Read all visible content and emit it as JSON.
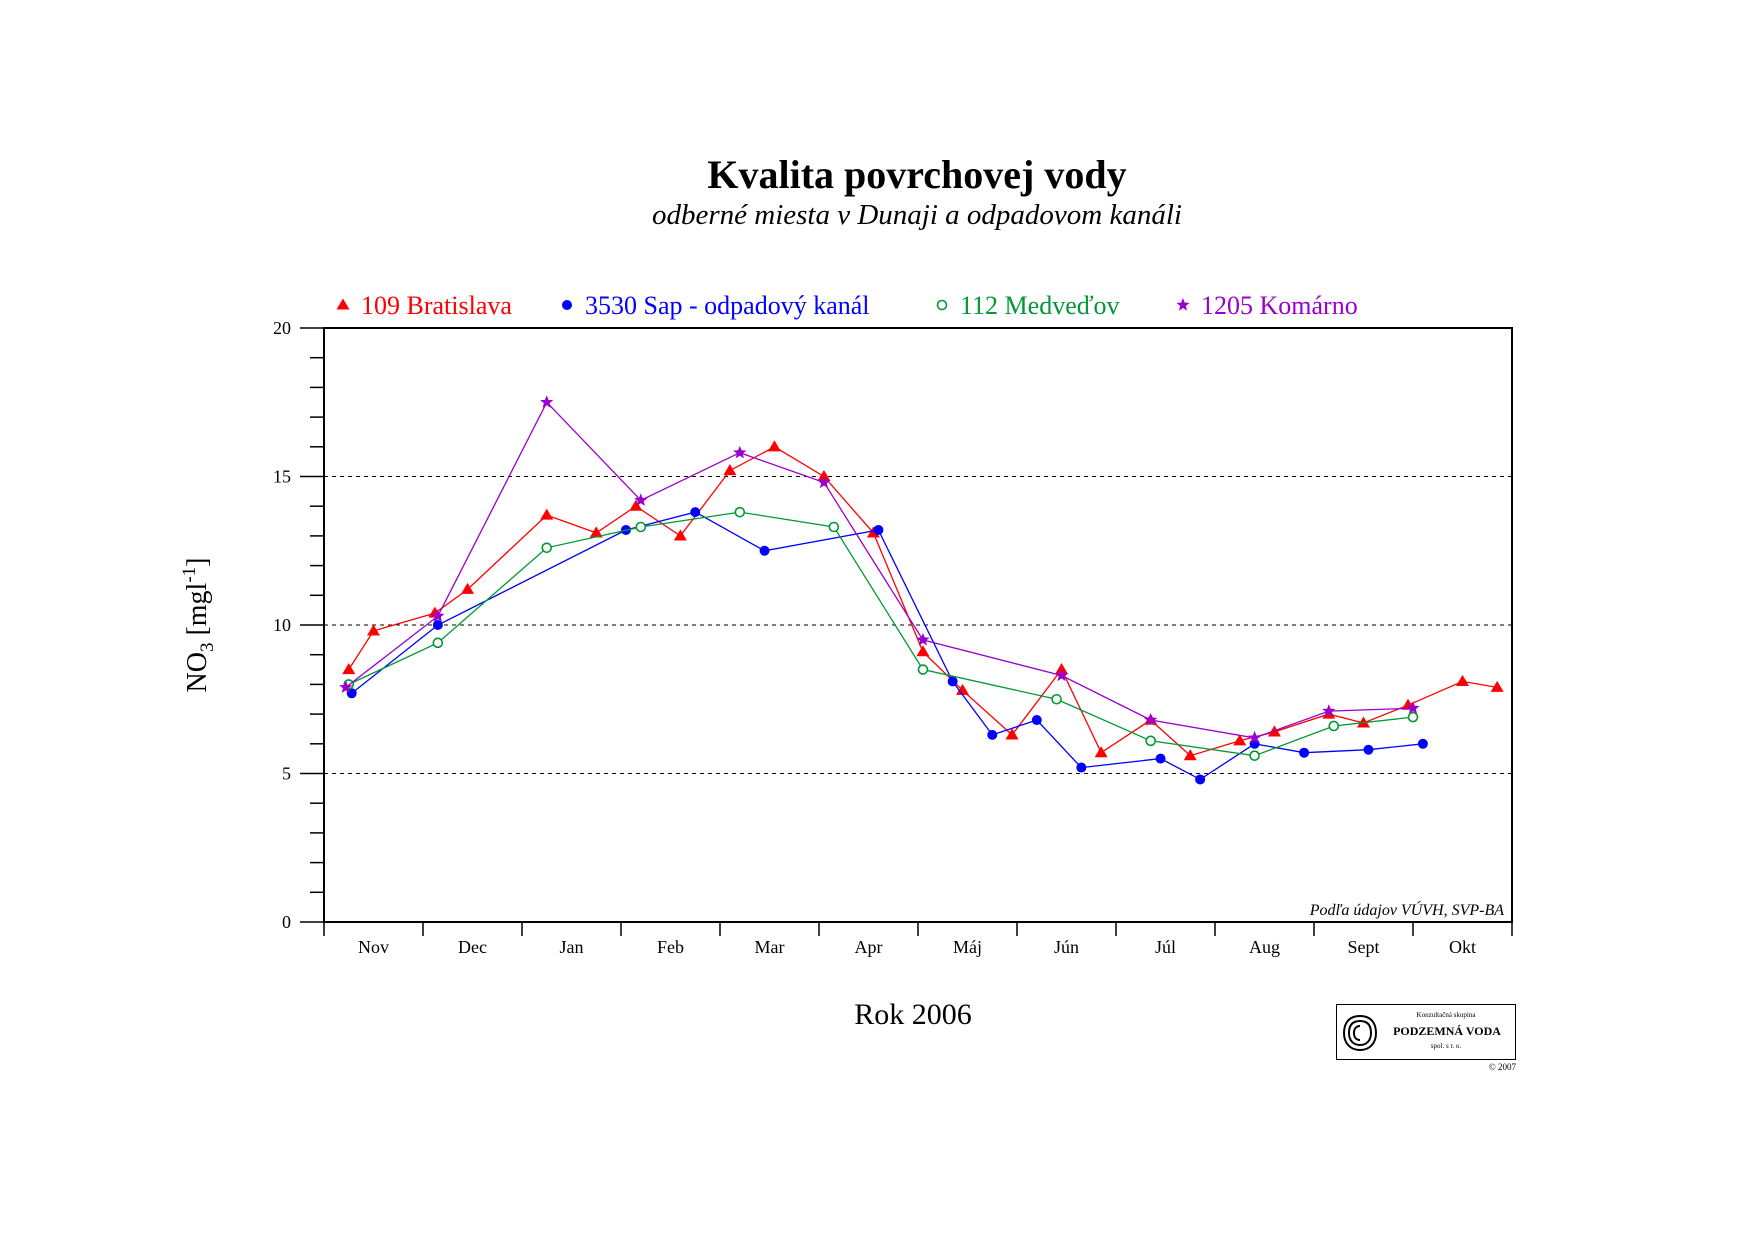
{
  "chart_data": {
    "type": "line",
    "title": "Kvalita povrchovej vody",
    "subtitle": "odberné miesta v Dunaji a odpadovom kanáli",
    "xlabel": "Rok 2006",
    "ylabel_main": "NO",
    "ylabel_sub": "3",
    "ylabel_unit_open": " [mgl",
    "ylabel_unit_sup": "-1",
    "ylabel_unit_close": "]",
    "months": [
      "Nov",
      "Dec",
      "Jan",
      "Feb",
      "Mar",
      "Apr",
      "Máj",
      "Jún",
      "Júl",
      "Aug",
      "Sept",
      "Okt"
    ],
    "ylim": [
      0,
      20
    ],
    "yticks": [
      0,
      5,
      10,
      15,
      20
    ],
    "gridlines": [
      5,
      10,
      15
    ],
    "legend_position": "top",
    "note": "Podľa údajov VÚVH, SVP-BA",
    "series": [
      {
        "name": "109 Bratislava",
        "color": "#ff0000",
        "marker": "triangle",
        "points": [
          [
            0.25,
            8.5
          ],
          [
            0.5,
            9.8
          ],
          [
            1.12,
            10.4
          ],
          [
            1.45,
            11.2
          ],
          [
            2.25,
            13.7
          ],
          [
            2.75,
            13.1
          ],
          [
            3.15,
            14.0
          ],
          [
            3.6,
            13.0
          ],
          [
            4.1,
            15.2
          ],
          [
            4.55,
            16.0
          ],
          [
            5.05,
            15.0
          ],
          [
            5.55,
            13.1
          ],
          [
            6.05,
            9.1
          ],
          [
            6.45,
            7.8
          ],
          [
            6.95,
            6.3
          ],
          [
            7.45,
            8.5
          ],
          [
            7.85,
            5.7
          ],
          [
            8.35,
            6.8
          ],
          [
            8.75,
            5.6
          ],
          [
            9.25,
            6.1
          ],
          [
            9.6,
            6.4
          ],
          [
            10.15,
            7.0
          ],
          [
            10.5,
            6.7
          ],
          [
            10.95,
            7.3
          ],
          [
            11.5,
            8.1
          ],
          [
            11.85,
            7.9
          ]
        ]
      },
      {
        "name": "3530 Sap - odpadový kanál",
        "color": "#0000ff",
        "marker": "filled-circle",
        "points": [
          [
            0.28,
            7.7
          ],
          [
            1.15,
            10.0
          ],
          [
            3.05,
            13.2
          ],
          [
            3.75,
            13.8
          ],
          [
            4.45,
            12.5
          ],
          [
            5.6,
            13.2
          ],
          [
            6.35,
            8.1
          ],
          [
            6.75,
            6.3
          ],
          [
            7.2,
            6.8
          ],
          [
            7.65,
            5.2
          ],
          [
            8.45,
            5.5
          ],
          [
            8.85,
            4.8
          ],
          [
            9.4,
            6.0
          ],
          [
            9.9,
            5.7
          ],
          [
            10.55,
            5.8
          ],
          [
            11.1,
            6.0
          ]
        ]
      },
      {
        "name": "112 Medveďov",
        "color": "#009933",
        "marker": "open-circle",
        "points": [
          [
            0.25,
            8.0
          ],
          [
            1.15,
            9.4
          ],
          [
            2.25,
            12.6
          ],
          [
            3.2,
            13.3
          ],
          [
            4.2,
            13.8
          ],
          [
            5.15,
            13.3
          ],
          [
            6.05,
            8.5
          ],
          [
            7.4,
            7.5
          ],
          [
            8.35,
            6.1
          ],
          [
            9.4,
            5.6
          ],
          [
            10.2,
            6.6
          ],
          [
            11.0,
            6.9
          ]
        ]
      },
      {
        "name": "1205 Komárno",
        "color": "#9900cc",
        "marker": "star",
        "points": [
          [
            0.22,
            7.9
          ],
          [
            1.15,
            10.3
          ],
          [
            2.25,
            17.5
          ],
          [
            3.2,
            14.2
          ],
          [
            4.2,
            15.8
          ],
          [
            5.05,
            14.8
          ],
          [
            6.05,
            9.5
          ],
          [
            7.45,
            8.3
          ],
          [
            8.35,
            6.8
          ],
          [
            9.4,
            6.2
          ],
          [
            10.15,
            7.1
          ],
          [
            11.0,
            7.2
          ]
        ]
      }
    ]
  },
  "logo": {
    "top_text": "Konzultačná skupina",
    "name": "PODZEMNÁ VODA",
    "bottom_text": "spol. s r. o.",
    "copyright": "© 2007"
  }
}
